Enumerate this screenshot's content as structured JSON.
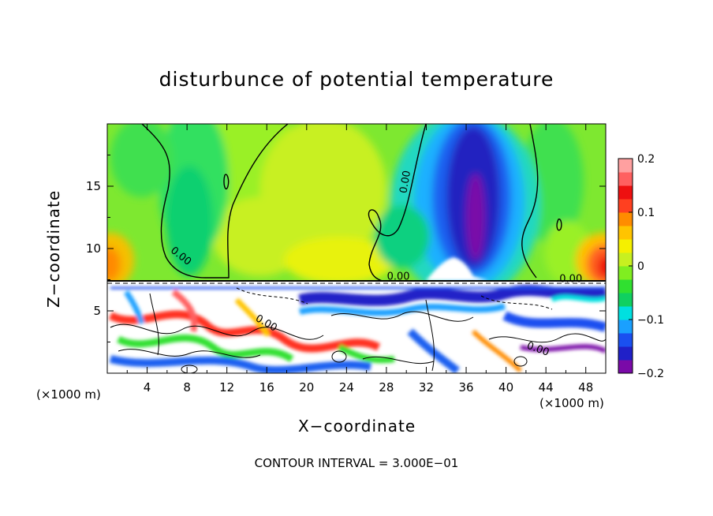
{
  "chart_data": {
    "type": "heatmap",
    "title": "disturbunce of potential temperature",
    "xlabel": "X−coordinate",
    "ylabel": "Z−coordinate",
    "x_unit_label": "(×1000 m)",
    "y_unit_label": "(×1000 m)",
    "footer": "CONTOUR INTERVAL = 3.000E−01",
    "xlim": [
      0,
      50
    ],
    "ylim": [
      0,
      20
    ],
    "x_ticks": [
      4,
      8,
      12,
      16,
      20,
      24,
      28,
      32,
      36,
      40,
      44,
      48
    ],
    "y_ticks": [
      5,
      10,
      15
    ],
    "colorbar": {
      "min": -0.2,
      "max": 0.2,
      "ticks": [
        0.2,
        0.1,
        0,
        -0.1,
        -0.2
      ],
      "tick_labels": [
        "0.2",
        "0.1",
        "0",
        "−0.1",
        "−0.2"
      ],
      "colors": [
        "#7a0aa8",
        "#2020c8",
        "#1a50f0",
        "#1aa0ff",
        "#00e0e0",
        "#10d060",
        "#30e030",
        "#80ee20",
        "#c8f020",
        "#f5f000",
        "#ffc400",
        "#ff8c00",
        "#ff4020",
        "#ee1010",
        "#ff6060",
        "#ffa0a0"
      ]
    },
    "contour_labels": [
      "0.00",
      "0.00",
      "0.00",
      "0.00",
      "0.00",
      "0.00"
    ],
    "features": [
      {
        "name": "negative anomaly core",
        "x": 37,
        "z": 16,
        "value": -0.2
      },
      {
        "name": "positive anomaly left edge",
        "x": 0,
        "z": 10,
        "value": 0.1
      },
      {
        "name": "positive anomaly right edge",
        "x": 50,
        "z": 9.5,
        "value": 0.15
      },
      {
        "name": "layer interface",
        "x": 25,
        "z": 7.5,
        "value": 0
      }
    ]
  }
}
